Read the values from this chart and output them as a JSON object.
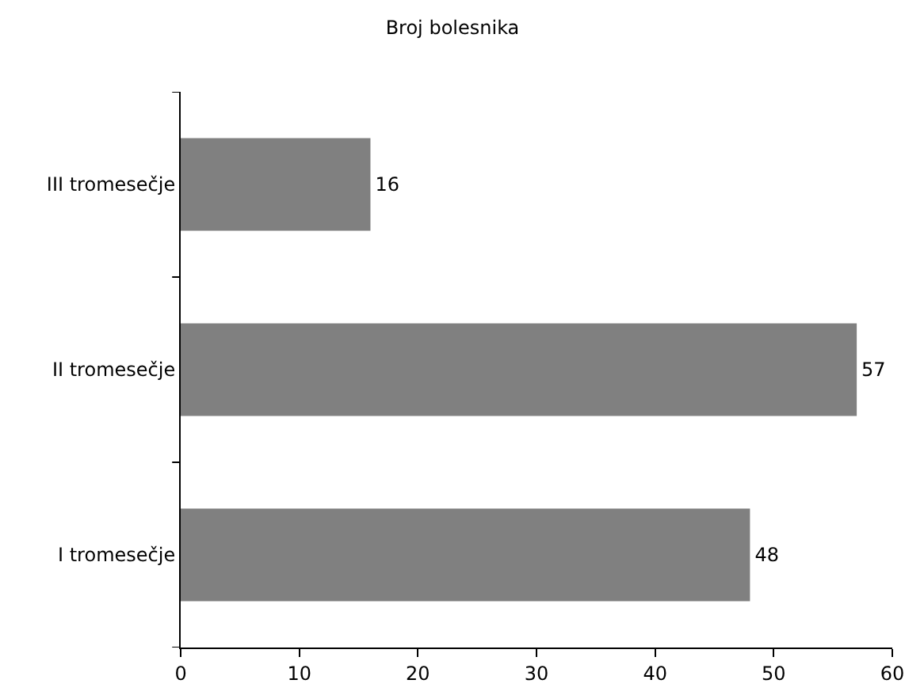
{
  "chart_data": {
    "type": "bar",
    "orientation": "horizontal",
    "title": "Broj bolesnika",
    "categories": [
      "III tromesečje",
      "II tromesečje",
      "I tromesečje"
    ],
    "values": [
      16,
      57,
      48
    ],
    "color": "#808080",
    "xlim": [
      0,
      60
    ],
    "xticks": [
      0,
      10,
      20,
      30,
      40,
      50,
      60
    ],
    "grid": false,
    "data_labels": true
  }
}
